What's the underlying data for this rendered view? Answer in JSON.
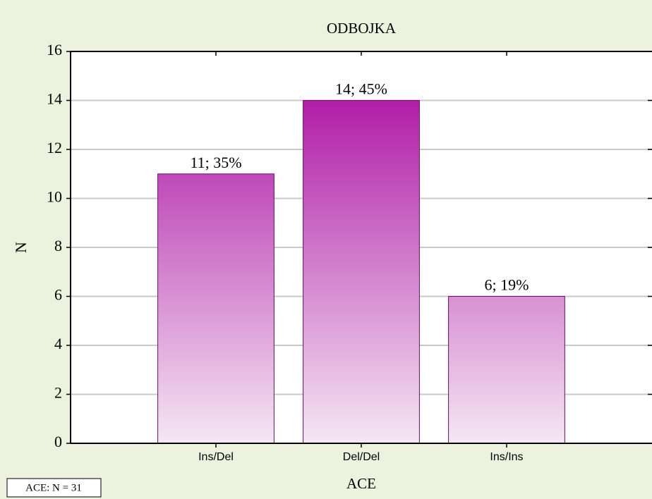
{
  "chart_data": {
    "type": "bar",
    "title": "ODBOJKA",
    "x_label": "ACE",
    "y_label": "N",
    "annotation": "ACE:  N = 31",
    "categories": [
      "Ins/Del",
      "Del/Del",
      "Ins/Ins"
    ],
    "values": [
      11,
      14,
      6
    ],
    "value_labels": [
      "11; 35%",
      "14; 45%",
      "6; 19%"
    ],
    "color": [
      "#b01ea8",
      "#f5e7f3"
    ],
    "ylim": [
      0,
      16
    ],
    "yticks": [
      0,
      2,
      4,
      6,
      8,
      10,
      12,
      14,
      16
    ],
    "grid": true
  }
}
